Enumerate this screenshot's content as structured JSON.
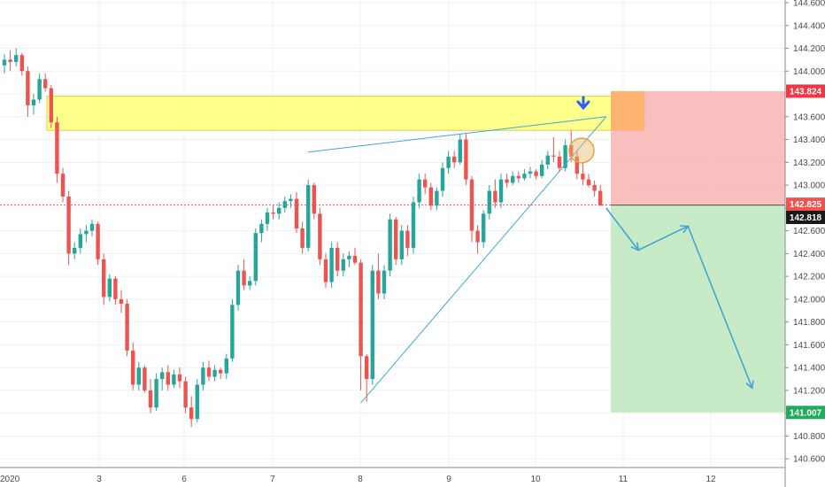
{
  "chart_data": {
    "type": "candlestick",
    "title": "",
    "xlabel": "",
    "ylabel": "",
    "x_tick_labels": [
      "2020",
      "3",
      "6",
      "7",
      "8",
      "9",
      "10",
      "11",
      "12"
    ],
    "ylim": [
      140.5,
      144.6
    ],
    "y_ticks": [
      144.6,
      144.4,
      144.2,
      144.0,
      143.8,
      143.6,
      143.4,
      143.2,
      143.0,
      142.8,
      142.6,
      142.4,
      142.2,
      142.0,
      141.8,
      141.6,
      141.4,
      141.2,
      141.0,
      140.8,
      140.6
    ],
    "y_tick_labels": [
      "144.600",
      "144.400",
      "144.200",
      "144.000",
      "143.800",
      "143.600",
      "143.400",
      "143.200",
      "143.000",
      "142.800",
      "142.600",
      "142.400",
      "142.200",
      "142.000",
      "141.800",
      "141.600",
      "141.400",
      "141.200",
      "141.000",
      "140.800",
      "140.600"
    ],
    "grid": true,
    "colors": {
      "up": "#26a69a",
      "down": "#ef5350",
      "supply_zone": "#ffff66",
      "stop_zone": "#f8b3b3",
      "target_zone": "#bde6bd",
      "trendline": "#42a5d6",
      "badge_stop": "#f23645",
      "badge_price": "#ef5350",
      "badge_last": "#1a1a1a",
      "badge_target": "#22ab5a",
      "marker_arrow": "#2962ff",
      "circle": "#e8a33a"
    },
    "price_badges": [
      {
        "name": "stop-level",
        "value": "143.824",
        "price": 143.824
      },
      {
        "name": "entry-level",
        "value": "142.825",
        "price": 142.825
      },
      {
        "name": "last-price",
        "value": "142.818",
        "price": 142.818
      },
      {
        "name": "target-level",
        "value": "141.007",
        "price": 141.007
      }
    ],
    "zones": {
      "supply": {
        "from": 143.48,
        "to": 143.78
      },
      "stop": {
        "from": 142.825,
        "to": 143.824
      },
      "target": {
        "from": 141.007,
        "to": 142.825
      }
    },
    "candles": [
      [
        144.05,
        144.15,
        143.98,
        144.1
      ],
      [
        144.1,
        144.18,
        144.0,
        144.08
      ],
      [
        144.08,
        144.2,
        144.04,
        144.14
      ],
      [
        144.14,
        144.16,
        143.96,
        144.0
      ],
      [
        144.0,
        144.04,
        143.6,
        143.7
      ],
      [
        143.7,
        143.8,
        143.62,
        143.75
      ],
      [
        143.75,
        143.98,
        143.72,
        143.93
      ],
      [
        143.93,
        143.98,
        143.82,
        143.85
      ],
      [
        143.85,
        143.88,
        143.5,
        143.55
      ],
      [
        143.55,
        143.6,
        143.02,
        143.1
      ],
      [
        143.1,
        143.15,
        142.85,
        142.9
      ],
      [
        142.9,
        142.95,
        142.3,
        142.4
      ],
      [
        142.4,
        142.5,
        142.35,
        142.45
      ],
      [
        142.45,
        142.62,
        142.4,
        142.57
      ],
      [
        142.57,
        142.65,
        142.5,
        142.6
      ],
      [
        142.6,
        142.7,
        142.55,
        142.66
      ],
      [
        142.66,
        142.68,
        142.3,
        142.35
      ],
      [
        142.35,
        142.4,
        141.95,
        142.02
      ],
      [
        142.02,
        142.22,
        141.98,
        142.18
      ],
      [
        142.18,
        142.2,
        141.95,
        142.0
      ],
      [
        142.0,
        142.08,
        141.88,
        141.96
      ],
      [
        141.96,
        142.0,
        141.5,
        141.55
      ],
      [
        141.55,
        141.62,
        141.2,
        141.25
      ],
      [
        141.25,
        141.45,
        141.2,
        141.4
      ],
      [
        141.4,
        141.42,
        141.18,
        141.2
      ],
      [
        141.2,
        141.3,
        141.0,
        141.05
      ],
      [
        141.05,
        141.35,
        141.02,
        141.3
      ],
      [
        141.3,
        141.4,
        141.2,
        141.36
      ],
      [
        141.36,
        141.42,
        141.2,
        141.25
      ],
      [
        141.25,
        141.38,
        141.22,
        141.34
      ],
      [
        141.34,
        141.4,
        141.22,
        141.28
      ],
      [
        141.28,
        141.32,
        141.0,
        141.05
      ],
      [
        141.05,
        141.15,
        140.88,
        140.95
      ],
      [
        140.95,
        141.3,
        140.92,
        141.25
      ],
      [
        141.25,
        141.45,
        141.2,
        141.4
      ],
      [
        141.4,
        141.46,
        141.28,
        141.32
      ],
      [
        141.32,
        141.42,
        141.28,
        141.38
      ],
      [
        141.38,
        141.4,
        141.3,
        141.35
      ],
      [
        141.35,
        141.52,
        141.3,
        141.48
      ],
      [
        141.48,
        142.0,
        141.45,
        141.95
      ],
      [
        141.95,
        142.3,
        141.9,
        142.25
      ],
      [
        142.25,
        142.35,
        142.08,
        142.12
      ],
      [
        142.12,
        142.2,
        142.08,
        142.16
      ],
      [
        142.16,
        142.62,
        142.12,
        142.58
      ],
      [
        142.58,
        142.7,
        142.5,
        142.66
      ],
      [
        142.66,
        142.8,
        142.6,
        142.76
      ],
      [
        142.76,
        142.82,
        142.7,
        142.75
      ],
      [
        142.75,
        142.85,
        142.7,
        142.8
      ],
      [
        142.8,
        142.9,
        142.76,
        142.86
      ],
      [
        142.86,
        142.92,
        142.8,
        142.88
      ],
      [
        142.88,
        142.94,
        142.58,
        142.62
      ],
      [
        142.62,
        142.68,
        142.4,
        142.45
      ],
      [
        142.45,
        143.05,
        142.42,
        143.0
      ],
      [
        143.0,
        143.02,
        142.7,
        142.75
      ],
      [
        142.75,
        142.8,
        142.3,
        142.35
      ],
      [
        142.35,
        142.4,
        142.1,
        142.15
      ],
      [
        142.15,
        142.5,
        142.1,
        142.45
      ],
      [
        142.45,
        142.5,
        142.2,
        142.25
      ],
      [
        142.25,
        142.4,
        142.2,
        142.35
      ],
      [
        142.35,
        142.42,
        142.28,
        142.38
      ],
      [
        142.38,
        142.45,
        142.3,
        142.32
      ],
      [
        142.32,
        142.35,
        141.2,
        141.5
      ],
      [
        141.5,
        141.52,
        141.1,
        141.3
      ],
      [
        141.3,
        142.3,
        141.25,
        142.25
      ],
      [
        142.25,
        142.4,
        142.0,
        142.05
      ],
      [
        142.05,
        142.3,
        142.0,
        142.25
      ],
      [
        142.25,
        142.75,
        142.2,
        142.7
      ],
      [
        142.7,
        142.72,
        142.3,
        142.35
      ],
      [
        142.35,
        142.65,
        142.3,
        142.6
      ],
      [
        142.6,
        142.65,
        142.38,
        142.45
      ],
      [
        142.45,
        142.9,
        142.4,
        142.85
      ],
      [
        142.85,
        143.1,
        142.8,
        143.05
      ],
      [
        143.05,
        143.1,
        142.92,
        142.98
      ],
      [
        142.98,
        143.02,
        142.78,
        142.82
      ],
      [
        142.82,
        142.98,
        142.78,
        142.95
      ],
      [
        142.95,
        143.2,
        142.9,
        143.15
      ],
      [
        143.15,
        143.3,
        143.1,
        143.25
      ],
      [
        143.25,
        143.3,
        143.15,
        143.2
      ],
      [
        143.2,
        143.45,
        143.18,
        143.4
      ],
      [
        143.4,
        143.45,
        143.0,
        143.05
      ],
      [
        143.05,
        143.08,
        142.5,
        142.6
      ],
      [
        142.6,
        142.65,
        142.4,
        142.5
      ],
      [
        142.5,
        142.78,
        142.45,
        142.75
      ],
      [
        142.75,
        143.0,
        142.7,
        142.95
      ],
      [
        142.95,
        143.05,
        142.8,
        142.85
      ],
      [
        142.85,
        143.1,
        142.8,
        143.05
      ],
      [
        143.05,
        143.1,
        142.98,
        143.02
      ],
      [
        143.02,
        143.12,
        143.0,
        143.08
      ],
      [
        143.08,
        143.12,
        143.02,
        143.06
      ],
      [
        143.06,
        143.14,
        143.04,
        143.1
      ],
      [
        143.1,
        143.16,
        143.06,
        143.12
      ],
      [
        143.12,
        143.14,
        143.05,
        143.08
      ],
      [
        143.08,
        143.22,
        143.06,
        143.18
      ],
      [
        143.18,
        143.3,
        143.14,
        143.26
      ],
      [
        143.26,
        143.42,
        143.2,
        143.25
      ],
      [
        143.25,
        143.3,
        143.12,
        143.15
      ],
      [
        143.15,
        143.4,
        143.12,
        143.35
      ],
      [
        143.35,
        143.48,
        143.2,
        143.25
      ],
      [
        143.25,
        143.3,
        143.05,
        143.1
      ],
      [
        143.1,
        143.2,
        143.0,
        143.05
      ],
      [
        143.05,
        143.1,
        142.98,
        143.0
      ],
      [
        143.0,
        143.04,
        142.9,
        142.95
      ],
      [
        142.95,
        143.0,
        142.82,
        142.82
      ]
    ],
    "annotations": [
      {
        "type": "trendline",
        "name": "upper-wedge-line",
        "points": [
          [
            52,
            143.29
          ],
          [
            103,
            143.6
          ]
        ]
      },
      {
        "type": "trendline",
        "name": "lower-wedge-line",
        "points": [
          [
            61,
            141.09
          ],
          [
            103,
            143.6
          ]
        ]
      },
      {
        "type": "projection",
        "name": "projected-path",
        "points": [
          [
            103,
            142.8
          ],
          [
            108.5,
            142.43
          ],
          [
            117,
            142.64
          ],
          [
            128,
            141.22
          ]
        ]
      }
    ]
  }
}
